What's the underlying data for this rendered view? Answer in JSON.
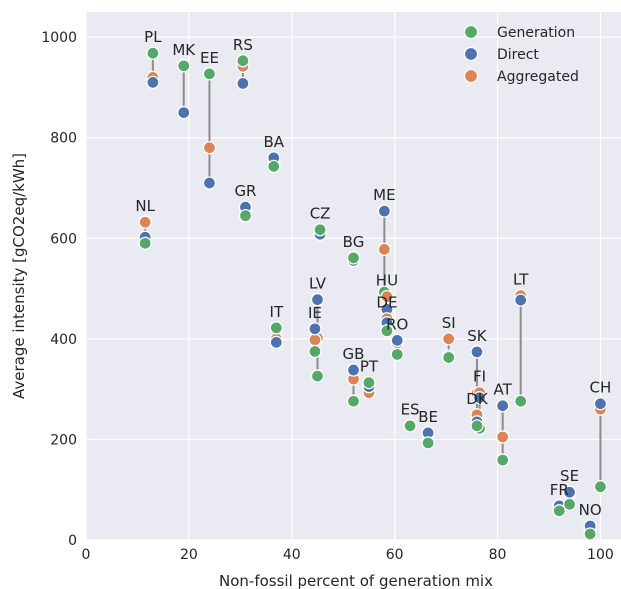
{
  "chart_data": {
    "type": "scatter",
    "xlabel": "Non-fossil percent of generation mix",
    "ylabel": "Average intensity [gCO2eq/kWh]",
    "xlim": [
      0,
      104
    ],
    "ylim": [
      0,
      1050
    ],
    "x_ticks": [
      0,
      20,
      40,
      60,
      80,
      100
    ],
    "y_ticks": [
      0,
      200,
      400,
      600,
      800,
      1000
    ],
    "x_tick_labels": [
      "0",
      "20",
      "40",
      "60",
      "80",
      "100"
    ],
    "y_tick_labels": [
      "0",
      "200",
      "400",
      "600",
      "800",
      "1000"
    ],
    "grid": true,
    "legend_position": "top-right",
    "series_order": [
      "Generation",
      "Direct",
      "Aggregated"
    ],
    "series": [
      {
        "name": "Generation",
        "color": "#55a868"
      },
      {
        "name": "Direct",
        "color": "#4c72b0"
      },
      {
        "name": "Aggregated",
        "color": "#dd8452"
      }
    ],
    "points": [
      {
        "country": "PL",
        "x": 13,
        "generation": 968,
        "direct": 910,
        "aggregated": 920
      },
      {
        "country": "MK",
        "x": 19,
        "generation": 943,
        "direct": 850,
        "aggregated": 850
      },
      {
        "country": "EE",
        "x": 24,
        "generation": 927,
        "direct": 710,
        "aggregated": 780
      },
      {
        "country": "RS",
        "x": 30.5,
        "generation": 953,
        "direct": 908,
        "aggregated": 942
      },
      {
        "country": "BA",
        "x": 36.5,
        "generation": 743,
        "direct": 760,
        "aggregated": 755
      },
      {
        "country": "GR",
        "x": 31,
        "generation": 645,
        "direct": 662,
        "aggregated": 660
      },
      {
        "country": "NL",
        "x": 11.5,
        "generation": 590,
        "direct": 602,
        "aggregated": 632
      },
      {
        "country": "CZ",
        "x": 45.5,
        "generation": 617,
        "direct": 608,
        "aggregated": 612
      },
      {
        "country": "BG",
        "x": 52,
        "generation": 561,
        "direct": 556,
        "aggregated": 558
      },
      {
        "country": "ME",
        "x": 58,
        "generation": 493,
        "direct": 654,
        "aggregated": 578
      },
      {
        "country": "LV",
        "x": 45,
        "generation": 326,
        "direct": 478,
        "aggregated": 402
      },
      {
        "country": "HU",
        "x": 58.5,
        "generation": 426,
        "direct": 459,
        "aggregated": 484
      },
      {
        "country": "DE",
        "x": 58.5,
        "generation": 416,
        "direct": 432,
        "aggregated": 440
      },
      {
        "country": "IT",
        "x": 37,
        "generation": 422,
        "direct": 393,
        "aggregated": 400
      },
      {
        "country": "IE",
        "x": 44.5,
        "generation": 375,
        "direct": 420,
        "aggregated": 398
      },
      {
        "country": "RO",
        "x": 60.5,
        "generation": 369,
        "direct": 397,
        "aggregated": 392
      },
      {
        "country": "SI",
        "x": 70.5,
        "generation": 363,
        "direct": 366,
        "aggregated": 400
      },
      {
        "country": "SK",
        "x": 76,
        "generation": 232,
        "direct": 374,
        "aggregated": 292
      },
      {
        "country": "LT",
        "x": 84.5,
        "generation": 276,
        "direct": 477,
        "aggregated": 486
      },
      {
        "country": "GB",
        "x": 52,
        "generation": 276,
        "direct": 338,
        "aggregated": 320
      },
      {
        "country": "PT",
        "x": 55,
        "generation": 313,
        "direct": 305,
        "aggregated": 293
      },
      {
        "country": "FI",
        "x": 76.5,
        "generation": 222,
        "direct": 283,
        "aggregated": 293
      },
      {
        "country": "DK",
        "x": 76,
        "generation": 227,
        "direct": 235,
        "aggregated": 249
      },
      {
        "country": "AT",
        "x": 81,
        "generation": 159,
        "direct": 267,
        "aggregated": 205
      },
      {
        "country": "ES",
        "x": 63,
        "generation": 227,
        "direct": 228,
        "aggregated": 228
      },
      {
        "country": "BE",
        "x": 66.5,
        "generation": 193,
        "direct": 213,
        "aggregated": 210
      },
      {
        "country": "CH",
        "x": 100,
        "generation": 106,
        "direct": 271,
        "aggregated": 260
      },
      {
        "country": "FR",
        "x": 92,
        "generation": 58,
        "direct": 68,
        "aggregated": 65
      },
      {
        "country": "SE",
        "x": 94,
        "generation": 71,
        "direct": 95,
        "aggregated": 92
      },
      {
        "country": "NO",
        "x": 98,
        "generation": 12,
        "direct": 28,
        "aggregated": 22
      }
    ]
  }
}
